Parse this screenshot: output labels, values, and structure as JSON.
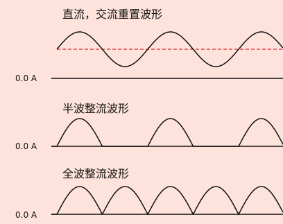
{
  "colors": {
    "background": "#FDE3DC",
    "waveform": "#111111",
    "dc_offset_line": "#E0212B"
  },
  "panels": [
    {
      "title": "直流，交流重置波形",
      "baseline_label": "0.0 A",
      "waveform_type": "sine-with-dc-offset",
      "cycles_shown": 3
    },
    {
      "title": "半波整流波形",
      "baseline_label": "0.0 A",
      "waveform_type": "half-wave-rectified",
      "cycles_shown": 3
    },
    {
      "title": "全波整流波形",
      "baseline_label": "0.0 A",
      "waveform_type": "full-wave-rectified",
      "cycles_shown": 3
    }
  ]
}
